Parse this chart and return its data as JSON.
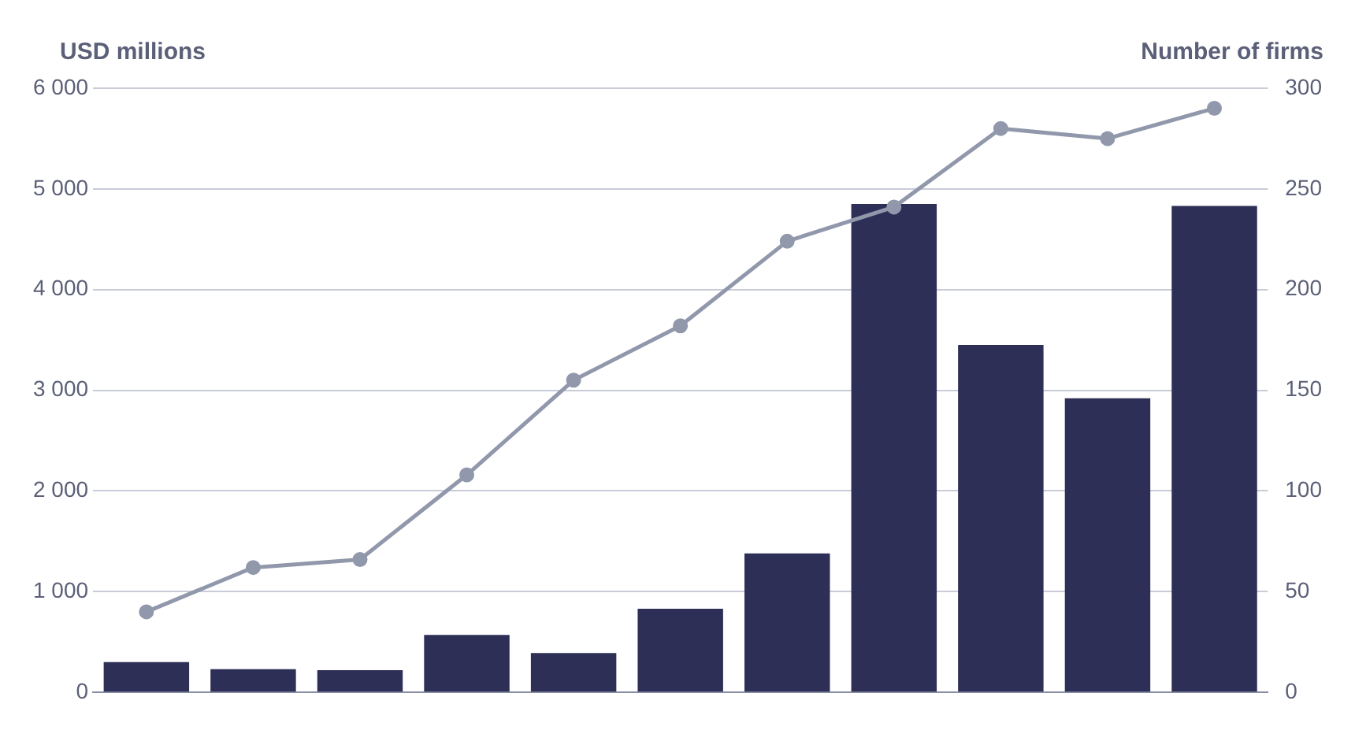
{
  "chart_data": {
    "type": "bar",
    "ylabel": "USD millions",
    "y2label": "Number of firms",
    "categories": [
      null,
      null,
      null,
      null,
      null,
      null,
      null,
      null,
      null,
      null,
      null
    ],
    "series": [
      {
        "color": "#2d2f57",
        "values": [
          300,
          230,
          220,
          570,
          390,
          830,
          1380,
          4850,
          3450,
          2920,
          4830
        ]
      },
      {
        "type": "line",
        "axis": "y2",
        "color": "#9198ab",
        "marker": "circle",
        "values": [
          40,
          62,
          66,
          108,
          155,
          182,
          224,
          241,
          280,
          275,
          290
        ]
      }
    ],
    "ylim": [
      0,
      6000
    ],
    "yticks": [
      0,
      {
        "value": 1000,
        "label": "1 000"
      },
      {
        "value": 2000,
        "label": "2 000"
      },
      {
        "value": 3000,
        "label": "3 000"
      },
      {
        "value": 4000,
        "label": "4 000"
      },
      {
        "value": 5000,
        "label": "5 000"
      },
      {
        "value": 6000,
        "label": "6 000"
      }
    ],
    "y2lim": [
      0,
      300
    ],
    "y2ticks": [
      0,
      50,
      100,
      150,
      200,
      250,
      300
    ],
    "grid": "y",
    "legend": false
  }
}
